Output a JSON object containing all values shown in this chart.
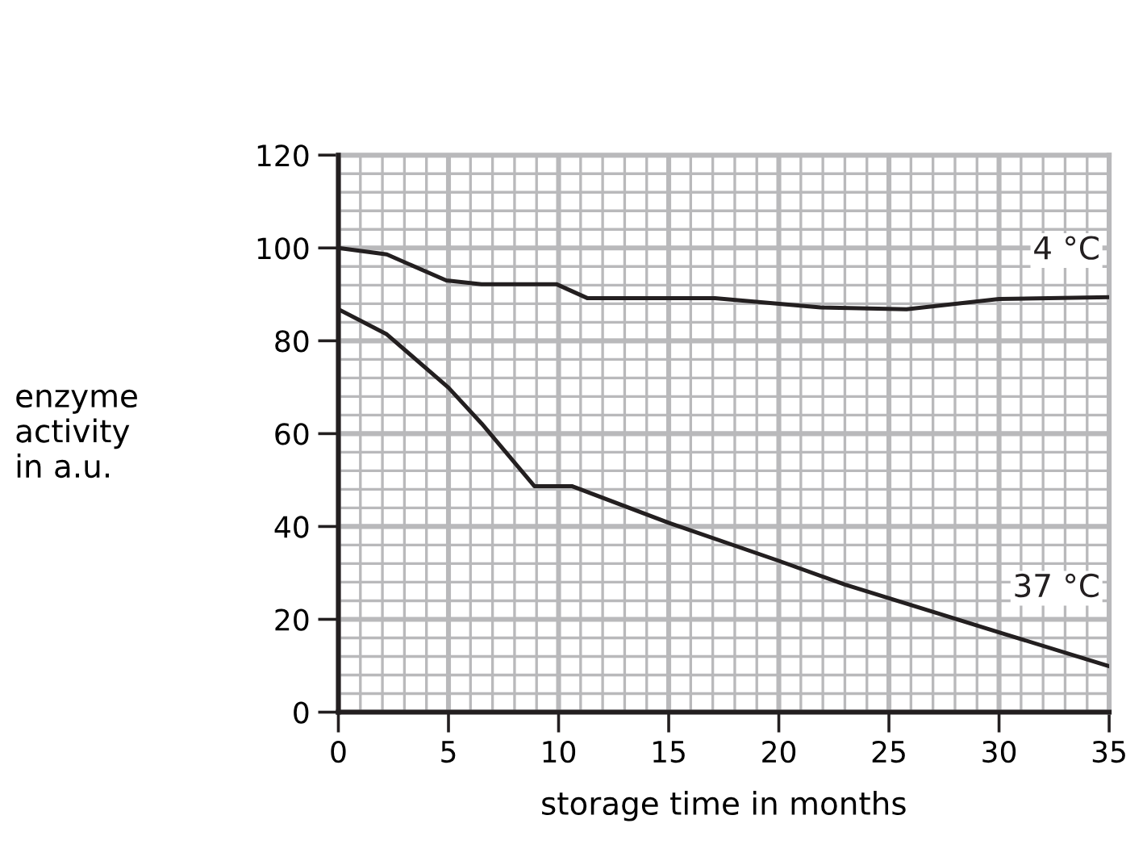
{
  "chart_data": {
    "type": "line",
    "xlabel": "storage time in months",
    "ylabel": "enzyme\nactivity\nin a.u.",
    "xlim": [
      0,
      35
    ],
    "ylim": [
      0,
      120
    ],
    "xticks": [
      0,
      5,
      10,
      15,
      20,
      25,
      30,
      35
    ],
    "yticks": [
      0,
      20,
      40,
      60,
      80,
      100,
      120
    ],
    "grid": true,
    "legend": false,
    "marker": "none",
    "line_style": "solid",
    "series": [
      {
        "name": "4 °C",
        "color": "#231f20",
        "x": [
          0,
          2.2,
          4.9,
          6.5,
          9.9,
          11.3,
          17.1,
          21.9,
          25.8,
          30.0,
          35
        ],
        "values": [
          100,
          98.6,
          93.0,
          92.2,
          92.2,
          89.2,
          89.2,
          87.2,
          86.8,
          89.0,
          89.4
        ]
      },
      {
        "name": "37 °C",
        "color": "#231f20",
        "x": [
          0,
          2.2,
          5.0,
          6.5,
          8.9,
          10.6,
          15.0,
          20.0,
          23.0,
          30.0,
          35
        ],
        "values": [
          86.8,
          81.4,
          69.9,
          62.2,
          48.7,
          48.7,
          40.8,
          32.6,
          27.5,
          17.2,
          9.9
        ]
      }
    ]
  }
}
